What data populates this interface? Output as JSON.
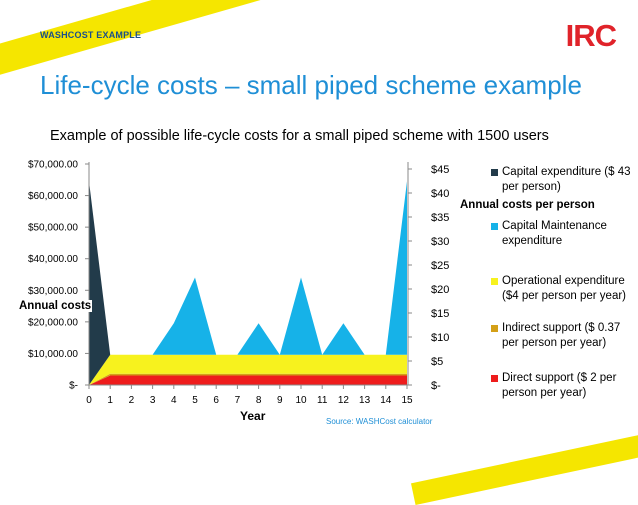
{
  "slide": {
    "tag": "WASHCOST EXAMPLE",
    "logo": "IRC",
    "title": "Life-cycle costs – small piped scheme example",
    "source": "Source: WASHCost calculator"
  },
  "colors": {
    "stripe": "#f5e600",
    "title": "#1f8fd6",
    "logo": "#e0232a",
    "capex": "#223b4a",
    "capmanev": "#16b2e8",
    "opex": "#f7f21e",
    "indirect": "#d4a017",
    "direct": "#ee1c1c"
  },
  "chart_data": {
    "type": "area",
    "title": "Example of possible life-cycle costs for a small piped scheme with 1500 users",
    "xlabel": "Year",
    "ylabel": "Annual costs",
    "y2label": "Annual costs per person",
    "x": [
      0,
      1,
      2,
      3,
      4,
      5,
      6,
      7,
      8,
      9,
      10,
      11,
      12,
      13,
      14,
      15
    ],
    "ylim": [
      0,
      70000
    ],
    "yticks": [
      "$-",
      "$10,000.00",
      "$20,000.00",
      "$30,000.00",
      "$40,000.00",
      "$50,000.00",
      "$60,000.00",
      "$70,000.00"
    ],
    "y2ticks": [
      "$-",
      "$5",
      "$10",
      "$15",
      "$20",
      "$25",
      "$30",
      "$35",
      "$40",
      "$45"
    ],
    "stacked": true,
    "series": [
      {
        "name": "Direct support ($ 2 per person per year)",
        "color": "#ee1c1c",
        "values": [
          0,
          3000,
          3000,
          3000,
          3000,
          3000,
          3000,
          3000,
          3000,
          3000,
          3000,
          3000,
          3000,
          3000,
          3000,
          3000
        ]
      },
      {
        "name": "Indirect support ($ 0.37 per person per year)",
        "color": "#d4a017",
        "values": [
          0,
          550,
          550,
          550,
          550,
          550,
          550,
          550,
          550,
          550,
          550,
          550,
          550,
          550,
          550,
          550
        ]
      },
      {
        "name": "Operational expenditure ($4 per person per year)",
        "color": "#f7f21e",
        "values": [
          0,
          6000,
          6000,
          6000,
          6000,
          6000,
          6000,
          6000,
          6000,
          6000,
          6000,
          6000,
          6000,
          6000,
          6000,
          6000
        ]
      },
      {
        "name": "Capital Maintenance expenditure",
        "color": "#16b2e8",
        "values": [
          0,
          0,
          0,
          0,
          10000,
          24500,
          0,
          0,
          10000,
          0,
          24500,
          0,
          10000,
          0,
          0,
          55000
        ]
      },
      {
        "name": "Capital expenditure ($ 43 per person)",
        "color": "#223b4a",
        "values": [
          64500,
          0,
          0,
          0,
          0,
          0,
          0,
          0,
          0,
          0,
          0,
          0,
          0,
          0,
          0,
          0
        ]
      }
    ],
    "legend": "right",
    "grid": false
  }
}
